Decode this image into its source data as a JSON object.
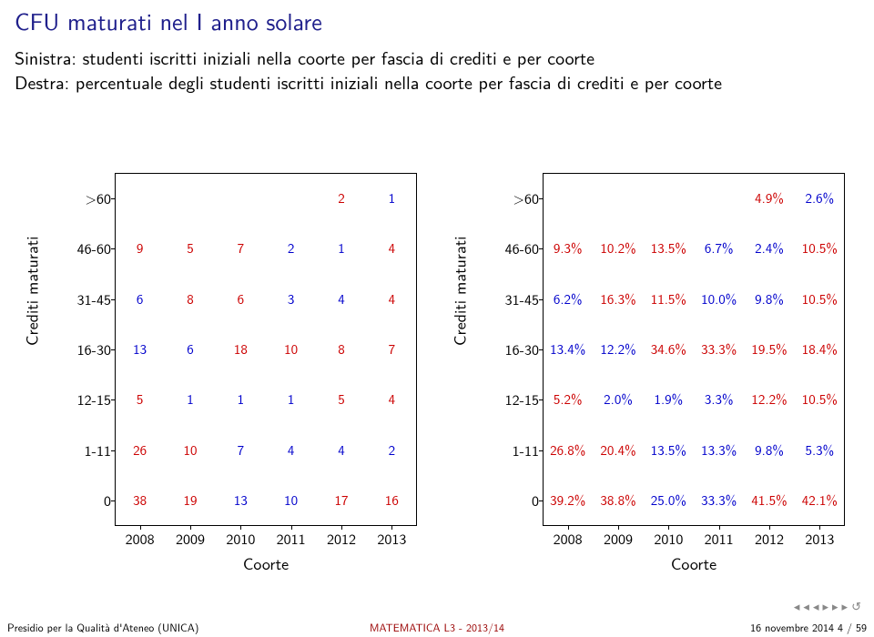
{
  "title": "CFU maturati nel I anno solare",
  "body_line1": "Sinistra: studenti iscritti iniziali nella coorte per fascia di crediti e per coorte",
  "body_line2": "Destra: percentuale degli studenti iscritti iniziali nella coorte per fascia di crediti e per coorte",
  "chart": {
    "ylabel": "Crediti maturati",
    "xlabel": "Coorte",
    "yticks": [
      ">60",
      "46-60",
      "31-45",
      "16-30",
      "12-15",
      "1-11",
      "0"
    ],
    "xticks": [
      "2008",
      "2009",
      "2010",
      "2011",
      "2012",
      "2013"
    ],
    "colors": {
      "positive": "#cc0000",
      "zero": "#00aa00",
      "negative": "#0000cc",
      "axis": "#000000",
      "bg": "#ffffff"
    },
    "left_cells": [
      [
        "",
        "",
        "",
        "",
        "2",
        "1"
      ],
      [
        "9",
        "5",
        "7",
        "2",
        "1",
        "4"
      ],
      [
        "6",
        "8",
        "6",
        "3",
        "4",
        "4"
      ],
      [
        "13",
        "6",
        "18",
        "10",
        "8",
        "7"
      ],
      [
        "5",
        "1",
        "1",
        "1",
        "5",
        "4"
      ],
      [
        "26",
        "10",
        "7",
        "4",
        "4",
        "2"
      ],
      [
        "38",
        "19",
        "13",
        "10",
        "17",
        "16"
      ]
    ],
    "right_cells": [
      [
        "",
        "",
        "",
        "",
        "4.9%",
        "2.6%"
      ],
      [
        "9.3%",
        "10.2%",
        "13.5%",
        "6.7%",
        "2.4%",
        "10.5%"
      ],
      [
        "6.2%",
        "16.3%",
        "11.5%",
        "10.0%",
        "9.8%",
        "10.5%"
      ],
      [
        "13.4%",
        "12.2%",
        "34.6%",
        "33.3%",
        "19.5%",
        "18.4%"
      ],
      [
        "5.2%",
        "2.0%",
        "1.9%",
        "3.3%",
        "12.2%",
        "10.5%"
      ],
      [
        "26.8%",
        "20.4%",
        "13.5%",
        "13.3%",
        "9.8%",
        "5.3%"
      ],
      [
        "39.2%",
        "38.8%",
        "25.0%",
        "33.3%",
        "41.5%",
        "42.1%"
      ]
    ]
  },
  "footer": {
    "left": "Presidio per la Qualità d'Ateneo (UNICA)",
    "center": "MATEMATICA L3 - 2013/14",
    "right": "16 novembre 2014    4 / 59"
  },
  "icons": {
    "nav_back_section": "◂◂",
    "nav_back": "◂",
    "nav_fwd": "▸",
    "nav_fwd_section": "▸▸",
    "nav_circle": "↺"
  }
}
